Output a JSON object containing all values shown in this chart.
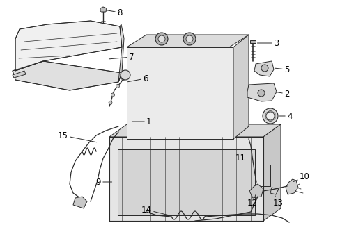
{
  "bg_color": "#ffffff",
  "line_color": "#2a2a2a",
  "fill_light": "#f5f5f5",
  "fill_mid": "#e8e8e8",
  "fill_dark": "#d0d0d0",
  "label_fontsize": 8.5,
  "lw": 0.7
}
